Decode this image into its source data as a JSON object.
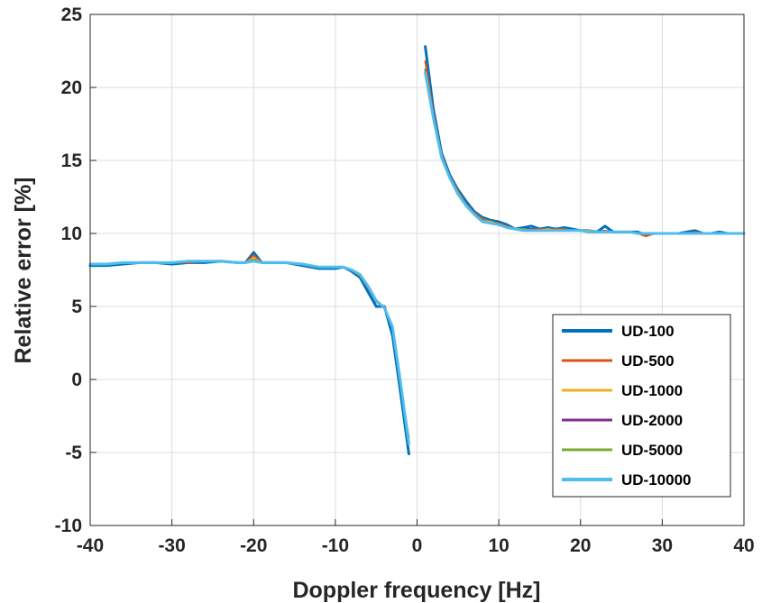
{
  "chart_data": {
    "type": "line",
    "title": "",
    "xlabel": "Doppler frequency [Hz]",
    "ylabel": "Relative error [%]",
    "xlim": [
      -40,
      40
    ],
    "ylim": [
      -10,
      25
    ],
    "xticks": [
      -40,
      -30,
      -20,
      -10,
      0,
      10,
      20,
      30,
      40
    ],
    "yticks": [
      -10,
      -5,
      0,
      5,
      10,
      15,
      20,
      25
    ],
    "grid": true,
    "legend_position": "bottom-right",
    "series": [
      {
        "name": "UD-100",
        "color": "#0072BD",
        "width": 3,
        "x": [
          -40,
          -38,
          -36,
          -34,
          -32,
          -30,
          -28,
          -26,
          -24,
          -22,
          -21,
          -20,
          -19,
          -18,
          -16,
          -14,
          -12,
          -10,
          -9,
          -8,
          -7,
          -6,
          -5,
          -4,
          -3,
          -2,
          -1,
          1,
          2,
          3,
          4,
          5,
          6,
          7,
          8,
          9,
          10,
          11,
          12,
          13,
          14,
          15,
          16,
          17,
          18,
          19,
          20,
          21,
          22,
          23,
          24,
          25,
          26,
          27,
          28,
          29,
          30,
          31,
          32,
          33,
          34,
          35,
          36,
          37,
          38,
          39,
          40
        ],
        "y": [
          7.8,
          7.8,
          7.9,
          8.0,
          8.0,
          7.9,
          8.0,
          8.0,
          8.1,
          8.0,
          8.0,
          8.7,
          8.0,
          8.0,
          8.0,
          7.8,
          7.6,
          7.6,
          7.7,
          7.4,
          7.0,
          6.0,
          5.0,
          5.0,
          3.0,
          -1.0,
          -5.1,
          22.8,
          18.5,
          15.5,
          14.0,
          13.0,
          12.2,
          11.5,
          11.1,
          10.9,
          10.8,
          10.6,
          10.3,
          10.4,
          10.5,
          10.3,
          10.4,
          10.3,
          10.4,
          10.3,
          10.2,
          10.2,
          10.1,
          10.5,
          10.1,
          10.1,
          10.1,
          10.1,
          9.9,
          10.0,
          10.0,
          10.0,
          10.0,
          10.1,
          10.2,
          10.0,
          10.0,
          10.1,
          10.0,
          10.0,
          10.0
        ]
      },
      {
        "name": "UD-500",
        "color": "#D95319",
        "width": 2,
        "x": [
          -40,
          -38,
          -36,
          -34,
          -32,
          -30,
          -28,
          -26,
          -24,
          -22,
          -21,
          -20,
          -19,
          -18,
          -16,
          -14,
          -12,
          -10,
          -9,
          -8,
          -7,
          -6,
          -5,
          -4,
          -3,
          -2,
          -1,
          1,
          2,
          3,
          4,
          5,
          6,
          7,
          8,
          9,
          10,
          11,
          12,
          13,
          14,
          15,
          16,
          17,
          18,
          19,
          20,
          21,
          22,
          23,
          24,
          25,
          26,
          27,
          28,
          29,
          30,
          31,
          32,
          33,
          34,
          35,
          36,
          37,
          38,
          39,
          40
        ],
        "y": [
          7.9,
          7.9,
          8.0,
          8.0,
          8.0,
          8.0,
          8.0,
          8.1,
          8.1,
          8.0,
          8.0,
          8.5,
          8.0,
          8.0,
          8.0,
          7.9,
          7.7,
          7.7,
          7.7,
          7.5,
          7.1,
          6.3,
          5.3,
          5.0,
          3.5,
          -0.5,
          -4.0,
          21.8,
          18.2,
          15.4,
          13.9,
          12.9,
          12.0,
          11.4,
          11.0,
          10.8,
          10.7,
          10.5,
          10.3,
          10.3,
          10.3,
          10.3,
          10.3,
          10.3,
          10.3,
          10.2,
          10.2,
          10.2,
          10.1,
          10.2,
          10.1,
          10.1,
          10.1,
          10.0,
          9.8,
          10.0,
          10.0,
          10.0,
          10.0,
          10.0,
          10.1,
          10.0,
          10.0,
          10.0,
          10.0,
          10.0,
          10.0
        ]
      },
      {
        "name": "UD-1000",
        "color": "#EDB120",
        "width": 2,
        "x": [
          -40,
          -38,
          -36,
          -34,
          -32,
          -30,
          -28,
          -26,
          -24,
          -22,
          -21,
          -20,
          -19,
          -18,
          -16,
          -14,
          -12,
          -10,
          -9,
          -8,
          -7,
          -6,
          -5,
          -4,
          -3,
          -2,
          -1,
          1,
          2,
          3,
          4,
          5,
          6,
          7,
          8,
          9,
          10,
          11,
          12,
          13,
          14,
          15,
          16,
          17,
          18,
          19,
          20,
          21,
          22,
          23,
          24,
          25,
          26,
          27,
          28,
          29,
          30,
          31,
          32,
          33,
          34,
          35,
          36,
          37,
          38,
          39,
          40
        ],
        "y": [
          7.9,
          7.9,
          8.0,
          8.0,
          8.0,
          8.0,
          8.1,
          8.1,
          8.1,
          8.0,
          8.0,
          8.3,
          8.0,
          8.0,
          8.0,
          7.9,
          7.7,
          7.7,
          7.7,
          7.5,
          7.2,
          6.4,
          5.4,
          4.9,
          3.6,
          -0.3,
          -4.3,
          21.3,
          18.0,
          15.3,
          13.8,
          12.8,
          11.9,
          11.3,
          10.9,
          10.8,
          10.6,
          10.4,
          10.3,
          10.3,
          10.3,
          10.2,
          10.3,
          10.2,
          10.2,
          10.2,
          10.2,
          10.2,
          10.1,
          10.1,
          10.1,
          10.1,
          10.1,
          10.0,
          10.0,
          10.0,
          10.0,
          10.0,
          10.0,
          10.0,
          10.0,
          10.0,
          10.0,
          10.0,
          10.0,
          10.0,
          10.0
        ]
      },
      {
        "name": "UD-2000",
        "color": "#7E2F8E",
        "width": 2,
        "x": [
          -40,
          -38,
          -36,
          -34,
          -32,
          -30,
          -28,
          -26,
          -24,
          -22,
          -21,
          -20,
          -19,
          -18,
          -16,
          -14,
          -12,
          -10,
          -9,
          -8,
          -7,
          -6,
          -5,
          -4,
          -3,
          -2,
          -1,
          1,
          2,
          3,
          4,
          5,
          6,
          7,
          8,
          9,
          10,
          11,
          12,
          13,
          14,
          15,
          16,
          17,
          18,
          19,
          20,
          21,
          22,
          23,
          24,
          25,
          26,
          27,
          28,
          29,
          30,
          31,
          32,
          33,
          34,
          35,
          36,
          37,
          38,
          39,
          40
        ],
        "y": [
          7.9,
          7.9,
          8.0,
          8.0,
          8.0,
          8.0,
          8.1,
          8.1,
          8.1,
          8.0,
          8.0,
          8.2,
          8.0,
          8.0,
          8.0,
          7.9,
          7.7,
          7.7,
          7.7,
          7.5,
          7.2,
          6.4,
          5.4,
          4.9,
          3.6,
          -0.3,
          -4.4,
          21.2,
          18.0,
          15.3,
          13.8,
          12.8,
          11.9,
          11.3,
          10.9,
          10.7,
          10.6,
          10.4,
          10.3,
          10.3,
          10.3,
          10.2,
          10.2,
          10.2,
          10.2,
          10.2,
          10.2,
          10.1,
          10.1,
          10.1,
          10.1,
          10.1,
          10.1,
          10.0,
          10.0,
          10.0,
          10.0,
          10.0,
          10.0,
          10.0,
          10.0,
          10.0,
          10.0,
          10.0,
          10.0,
          10.0,
          10.0
        ]
      },
      {
        "name": "UD-5000",
        "color": "#77AC30",
        "width": 2,
        "x": [
          -40,
          -38,
          -36,
          -34,
          -32,
          -30,
          -28,
          -26,
          -24,
          -22,
          -21,
          -20,
          -19,
          -18,
          -16,
          -14,
          -12,
          -10,
          -9,
          -8,
          -7,
          -6,
          -5,
          -4,
          -3,
          -2,
          -1,
          1,
          2,
          3,
          4,
          5,
          6,
          7,
          8,
          9,
          10,
          11,
          12,
          13,
          14,
          15,
          16,
          17,
          18,
          19,
          20,
          21,
          22,
          23,
          24,
          25,
          26,
          27,
          28,
          29,
          30,
          31,
          32,
          33,
          34,
          35,
          36,
          37,
          38,
          39,
          40
        ],
        "y": [
          7.9,
          7.9,
          8.0,
          8.0,
          8.0,
          8.0,
          8.1,
          8.1,
          8.1,
          8.0,
          8.0,
          8.2,
          8.0,
          8.0,
          8.0,
          7.9,
          7.7,
          7.7,
          7.7,
          7.5,
          7.2,
          6.4,
          5.4,
          4.9,
          3.6,
          -0.3,
          -4.4,
          21.1,
          17.9,
          15.2,
          13.8,
          12.8,
          11.9,
          11.3,
          10.9,
          10.7,
          10.6,
          10.4,
          10.3,
          10.3,
          10.2,
          10.2,
          10.2,
          10.2,
          10.2,
          10.2,
          10.2,
          10.1,
          10.1,
          10.1,
          10.1,
          10.1,
          10.1,
          10.0,
          10.0,
          10.0,
          10.0,
          10.0,
          10.0,
          10.0,
          10.0,
          10.0,
          10.0,
          10.0,
          10.0,
          10.0,
          10.0
        ]
      },
      {
        "name": "UD-10000",
        "color": "#4DBEEE",
        "width": 3,
        "x": [
          -40,
          -38,
          -36,
          -34,
          -32,
          -30,
          -28,
          -26,
          -24,
          -22,
          -21,
          -20,
          -19,
          -18,
          -16,
          -14,
          -12,
          -10,
          -9,
          -8,
          -7,
          -6,
          -5,
          -4,
          -3,
          -2,
          -1,
          1,
          2,
          3,
          4,
          5,
          6,
          7,
          8,
          9,
          10,
          11,
          12,
          13,
          14,
          15,
          16,
          17,
          18,
          19,
          20,
          21,
          22,
          23,
          24,
          25,
          26,
          27,
          28,
          29,
          30,
          31,
          32,
          33,
          34,
          35,
          36,
          37,
          38,
          39,
          40
        ],
        "y": [
          7.9,
          7.9,
          8.0,
          8.0,
          8.0,
          8.0,
          8.1,
          8.1,
          8.1,
          8.0,
          8.0,
          8.1,
          8.0,
          8.0,
          8.0,
          7.9,
          7.7,
          7.7,
          7.7,
          7.5,
          7.2,
          6.4,
          5.4,
          4.9,
          3.6,
          -0.3,
          -4.4,
          21.0,
          17.9,
          15.2,
          13.8,
          12.7,
          11.9,
          11.3,
          10.8,
          10.7,
          10.6,
          10.4,
          10.3,
          10.2,
          10.2,
          10.2,
          10.2,
          10.2,
          10.2,
          10.2,
          10.2,
          10.1,
          10.1,
          10.1,
          10.1,
          10.1,
          10.1,
          10.0,
          10.0,
          10.0,
          10.0,
          10.0,
          10.0,
          10.0,
          10.0,
          10.0,
          10.0,
          10.0,
          10.0,
          10.0,
          10.0
        ]
      }
    ]
  }
}
